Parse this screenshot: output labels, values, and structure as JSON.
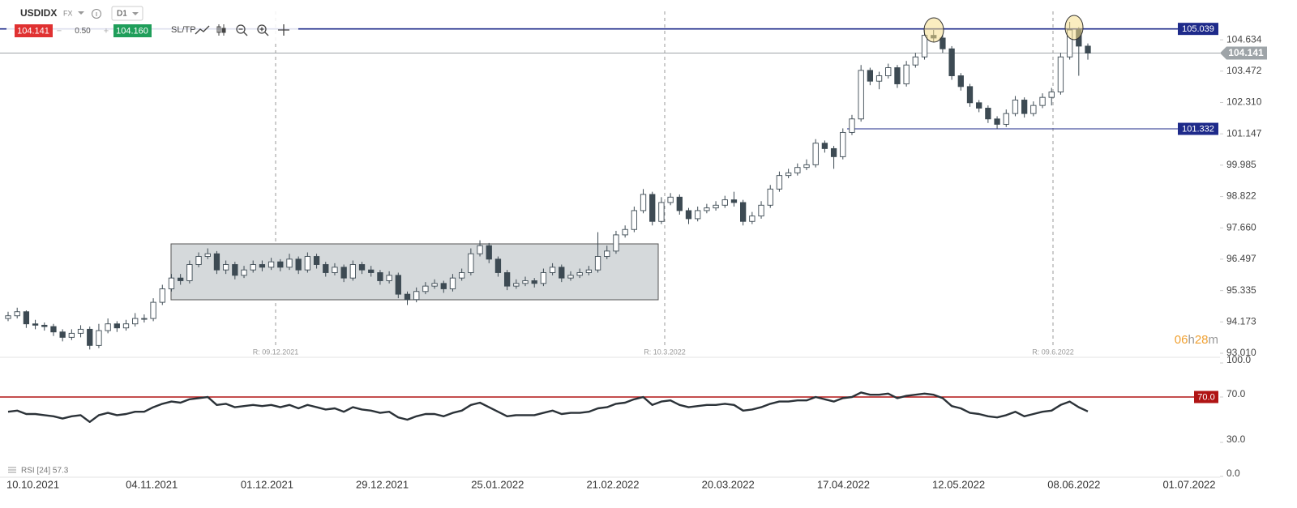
{
  "toolbar": {
    "symbol": "USDIDX",
    "market": "FX",
    "interval": "D1",
    "sell": "104.141",
    "spread": "0.50",
    "buy": "104.160",
    "sltp": "SL/TP"
  },
  "chart_data": [
    {
      "type": "candlestick",
      "open": [
        94.3,
        94.4,
        94.55,
        94.1,
        94.05,
        94.0,
        93.8,
        93.6,
        93.75,
        93.9,
        93.3,
        93.85,
        94.1,
        93.95,
        94.1,
        94.3,
        94.3,
        94.9,
        95.4,
        95.8,
        95.7,
        96.3,
        96.6,
        96.7,
        96.1,
        96.3,
        95.9,
        96.1,
        96.3,
        96.2,
        96.4,
        96.2,
        96.5,
        96.1,
        96.6,
        96.3,
        96.0,
        96.2,
        95.8,
        96.3,
        96.1,
        96.0,
        95.7,
        95.9,
        95.2,
        95.0,
        95.3,
        95.5,
        95.6,
        95.4,
        95.8,
        96.0,
        96.7,
        97.0,
        96.5,
        96.0,
        95.5,
        95.6,
        95.7,
        95.6,
        96.0,
        96.2,
        95.8,
        95.9,
        96.0,
        96.1,
        96.6,
        96.8,
        97.4,
        97.6,
        98.3,
        98.9,
        97.9,
        98.6,
        98.8,
        98.3,
        98.0,
        98.3,
        98.4,
        98.5,
        98.7,
        98.6,
        97.9,
        98.1,
        98.5,
        99.1,
        99.6,
        99.7,
        99.9,
        100.0,
        100.8,
        100.6,
        100.3,
        101.2,
        101.7,
        103.5,
        103.1,
        103.3,
        103.6,
        103.0,
        103.7,
        104.0,
        104.8,
        104.7,
        104.3,
        103.3,
        102.9,
        102.3,
        102.1,
        101.7,
        101.5,
        101.9,
        102.4,
        101.9,
        102.2,
        102.5,
        102.7,
        104.0,
        105.0,
        104.4
      ],
      "high": [
        94.55,
        94.7,
        94.6,
        94.25,
        94.15,
        94.1,
        93.9,
        93.9,
        94.05,
        94.0,
        94.1,
        94.3,
        94.2,
        94.25,
        94.5,
        94.45,
        95.05,
        95.55,
        95.95,
        95.95,
        96.45,
        96.75,
        96.9,
        96.8,
        96.45,
        96.4,
        96.25,
        96.45,
        96.45,
        96.55,
        96.5,
        96.7,
        96.6,
        96.75,
        96.7,
        96.4,
        96.35,
        96.3,
        96.45,
        96.4,
        96.25,
        96.1,
        96.05,
        96.0,
        95.3,
        95.45,
        95.65,
        95.75,
        95.7,
        95.95,
        96.15,
        96.9,
        97.2,
        97.1,
        96.6,
        96.1,
        95.75,
        95.85,
        95.8,
        96.15,
        96.35,
        96.3,
        96.05,
        96.15,
        96.25,
        97.5,
        97.0,
        97.55,
        97.75,
        98.45,
        99.1,
        99.0,
        98.8,
        98.95,
        98.9,
        98.4,
        98.45,
        98.55,
        98.65,
        98.85,
        99.0,
        98.7,
        98.25,
        98.65,
        99.25,
        99.75,
        99.85,
        100.05,
        100.2,
        100.95,
        100.9,
        100.7,
        101.35,
        101.85,
        103.7,
        103.6,
        103.45,
        103.75,
        103.7,
        103.85,
        104.15,
        105.0,
        105.0,
        104.8,
        104.4,
        103.4,
        103.0,
        102.4,
        102.2,
        101.8,
        102.05,
        102.55,
        102.5,
        102.35,
        102.65,
        102.85,
        104.15,
        105.3,
        105.1,
        104.5
      ],
      "low": [
        94.2,
        94.3,
        93.95,
        93.9,
        93.85,
        93.65,
        93.45,
        93.5,
        93.6,
        93.15,
        93.2,
        93.75,
        93.8,
        93.85,
        94.0,
        94.15,
        94.2,
        94.8,
        95.3,
        95.55,
        95.6,
        96.2,
        96.5,
        95.95,
        95.95,
        95.75,
        95.8,
        96.0,
        96.05,
        96.1,
        96.05,
        96.1,
        95.95,
        96.0,
        96.15,
        95.85,
        95.9,
        95.65,
        95.7,
        95.95,
        95.85,
        95.55,
        95.6,
        95.05,
        94.8,
        94.9,
        95.2,
        95.4,
        95.25,
        95.3,
        95.7,
        95.9,
        96.6,
        96.35,
        95.85,
        95.35,
        95.4,
        95.5,
        95.45,
        95.5,
        95.9,
        95.65,
        95.7,
        95.8,
        95.9,
        96.0,
        96.5,
        96.7,
        97.3,
        97.5,
        98.2,
        97.75,
        97.8,
        98.5,
        98.15,
        97.8,
        97.9,
        98.2,
        98.3,
        98.4,
        98.45,
        97.75,
        97.8,
        98.0,
        98.4,
        99.0,
        99.5,
        99.6,
        99.8,
        99.9,
        100.45,
        99.85,
        100.2,
        101.1,
        101.6,
        102.95,
        102.8,
        103.2,
        102.85,
        102.9,
        103.6,
        103.9,
        104.55,
        104.15,
        103.15,
        102.75,
        102.15,
        101.95,
        101.55,
        101.33,
        101.4,
        101.8,
        101.75,
        101.8,
        102.1,
        102.2,
        102.6,
        103.9,
        103.3,
        103.9
      ],
      "close": [
        94.4,
        94.55,
        94.1,
        94.05,
        94.0,
        93.8,
        93.6,
        93.75,
        93.9,
        93.3,
        93.85,
        94.1,
        93.95,
        94.1,
        94.3,
        94.3,
        94.9,
        95.4,
        95.8,
        95.7,
        96.3,
        96.6,
        96.7,
        96.1,
        96.3,
        95.9,
        96.1,
        96.3,
        96.2,
        96.4,
        96.2,
        96.5,
        96.1,
        96.6,
        96.3,
        96.0,
        96.2,
        95.8,
        96.3,
        96.1,
        96.0,
        95.7,
        95.9,
        95.2,
        95.0,
        95.3,
        95.5,
        95.6,
        95.4,
        95.8,
        96.0,
        96.7,
        97.0,
        96.5,
        96.0,
        95.5,
        95.6,
        95.7,
        95.6,
        96.0,
        96.2,
        95.8,
        95.9,
        96.0,
        96.1,
        96.6,
        96.8,
        97.4,
        97.6,
        98.3,
        98.9,
        97.9,
        98.6,
        98.8,
        98.3,
        98.0,
        98.3,
        98.4,
        98.5,
        98.7,
        98.6,
        97.9,
        98.1,
        98.5,
        99.1,
        99.6,
        99.7,
        99.9,
        100.0,
        100.8,
        100.6,
        100.3,
        101.2,
        101.7,
        103.5,
        103.1,
        103.3,
        103.6,
        103.0,
        103.7,
        104.0,
        104.8,
        104.7,
        104.3,
        103.3,
        102.9,
        102.3,
        102.1,
        101.7,
        101.5,
        101.9,
        102.4,
        101.9,
        102.2,
        102.5,
        102.7,
        104.0,
        105.0,
        104.4,
        104.141
      ],
      "up_color": "#ffffff",
      "down_color": "#3d4a53",
      "edge_color": "#3d4a53",
      "ylim": [
        92.89,
        105.87
      ],
      "yticks": [
        {
          "value": 93.01,
          "label": "93.010"
        },
        {
          "value": 94.173,
          "label": "94.173"
        },
        {
          "value": 95.335,
          "label": "95.335"
        },
        {
          "value": 96.497,
          "label": "96.497"
        },
        {
          "value": 97.66,
          "label": "97.660"
        },
        {
          "value": 98.822,
          "label": "98.822"
        },
        {
          "value": 99.985,
          "label": "99.985"
        },
        {
          "value": 101.147,
          "label": "101.147"
        },
        {
          "value": 102.31,
          "label": "102.310"
        },
        {
          "value": 103.472,
          "label": "103.472"
        },
        {
          "value": 104.634,
          "label": "104.634"
        }
      ],
      "x_labels": [
        "10.10.2021",
        "04.11.2021",
        "01.12.2021",
        "29.12.2021",
        "25.01.2022",
        "21.02.2022",
        "20.03.2022",
        "17.04.2022",
        "12.05.2022",
        "08.06.2022",
        "01.07.2022"
      ],
      "levels": [
        {
          "value": 105.039,
          "label": "105.039",
          "color": "#1e2a8a"
        },
        {
          "value": 101.332,
          "label": "101.332",
          "color": "#1e2a8a"
        }
      ],
      "last_price": {
        "value": 104.141,
        "label": "104.141",
        "color": "#9ea4a8"
      },
      "markers": [
        "R: 09.12.2021",
        "R: 10.3.2022",
        "R: 09.6.2022"
      ],
      "countdown": [
        "06",
        "h",
        "28",
        "m"
      ]
    },
    {
      "type": "line",
      "label": "RSI [24] 57.3",
      "color": "#2b3238",
      "values": [
        57,
        58,
        55,
        55,
        54,
        53,
        51,
        53,
        54,
        48,
        54,
        56,
        54,
        55,
        57,
        57,
        61,
        64,
        66,
        65,
        68,
        69,
        70,
        63,
        64,
        61,
        62,
        63,
        62,
        63,
        61,
        63,
        60,
        63,
        61,
        59,
        60,
        57,
        61,
        59,
        58,
        56,
        57,
        52,
        50,
        53,
        55,
        55,
        53,
        56,
        58,
        63,
        65,
        61,
        57,
        53,
        54,
        54,
        54,
        56,
        58,
        55,
        56,
        56,
        57,
        60,
        61,
        64,
        65,
        68,
        70,
        63,
        66,
        67,
        63,
        61,
        62,
        63,
        63,
        64,
        63,
        58,
        59,
        61,
        64,
        66,
        66,
        67,
        67,
        70,
        68,
        66,
        69,
        70,
        74,
        72,
        72,
        73,
        69,
        71,
        72,
        73,
        72,
        69,
        62,
        60,
        56,
        55,
        53,
        52,
        54,
        57,
        53,
        55,
        57,
        58,
        63,
        66,
        61,
        57.3
      ],
      "ylim": [
        0,
        100
      ],
      "yticks": [
        {
          "value": 0,
          "label": "0.0"
        },
        {
          "value": 30,
          "label": "30.0"
        },
        {
          "value": 70,
          "label": "70.0"
        },
        {
          "value": 100,
          "label": "100.0"
        }
      ],
      "level": {
        "value": 70,
        "label": "70.0",
        "color": "#b01414"
      }
    }
  ]
}
